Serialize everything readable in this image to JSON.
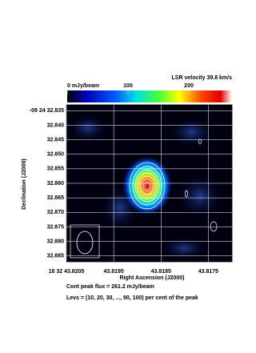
{
  "chart_data": {
    "type": "contour-map",
    "title": "LSR velocity 39.8 km/s",
    "xlabel": "Right Ascension (J2000)",
    "ylabel": "Declination (J2000)",
    "xlim": [
      43.8205,
      43.817
    ],
    "xticks": [
      {
        "value": 43.8205,
        "label": "18 32 43.8205"
      },
      43.8195,
      43.8185,
      43.8175
    ],
    "ylim": [
      32.833,
      32.887
    ],
    "yticks": [
      {
        "value": 32.835,
        "label": "-09 24 32.835"
      },
      {
        "value": 32.84,
        "label": "32.840"
      },
      32.845,
      {
        "value": 32.85,
        "label": "32.850"
      },
      32.855,
      {
        "value": 32.86,
        "label": "32.860"
      },
      32.865,
      {
        "value": 32.87,
        "label": "32.870"
      },
      32.875,
      {
        "value": 32.88,
        "label": "32.880"
      },
      32.885
    ],
    "clim": [
      0,
      271
    ],
    "cticks": [
      {
        "value": 0,
        "label": "0 mJy/beam"
      },
      100,
      200
    ],
    "grid": true,
    "notes": [
      "Cont peak flux =  261.2 mJy/beam",
      "Levs = (10, 20, 30, ..., 90, 100) per cent of the peak"
    ]
  }
}
